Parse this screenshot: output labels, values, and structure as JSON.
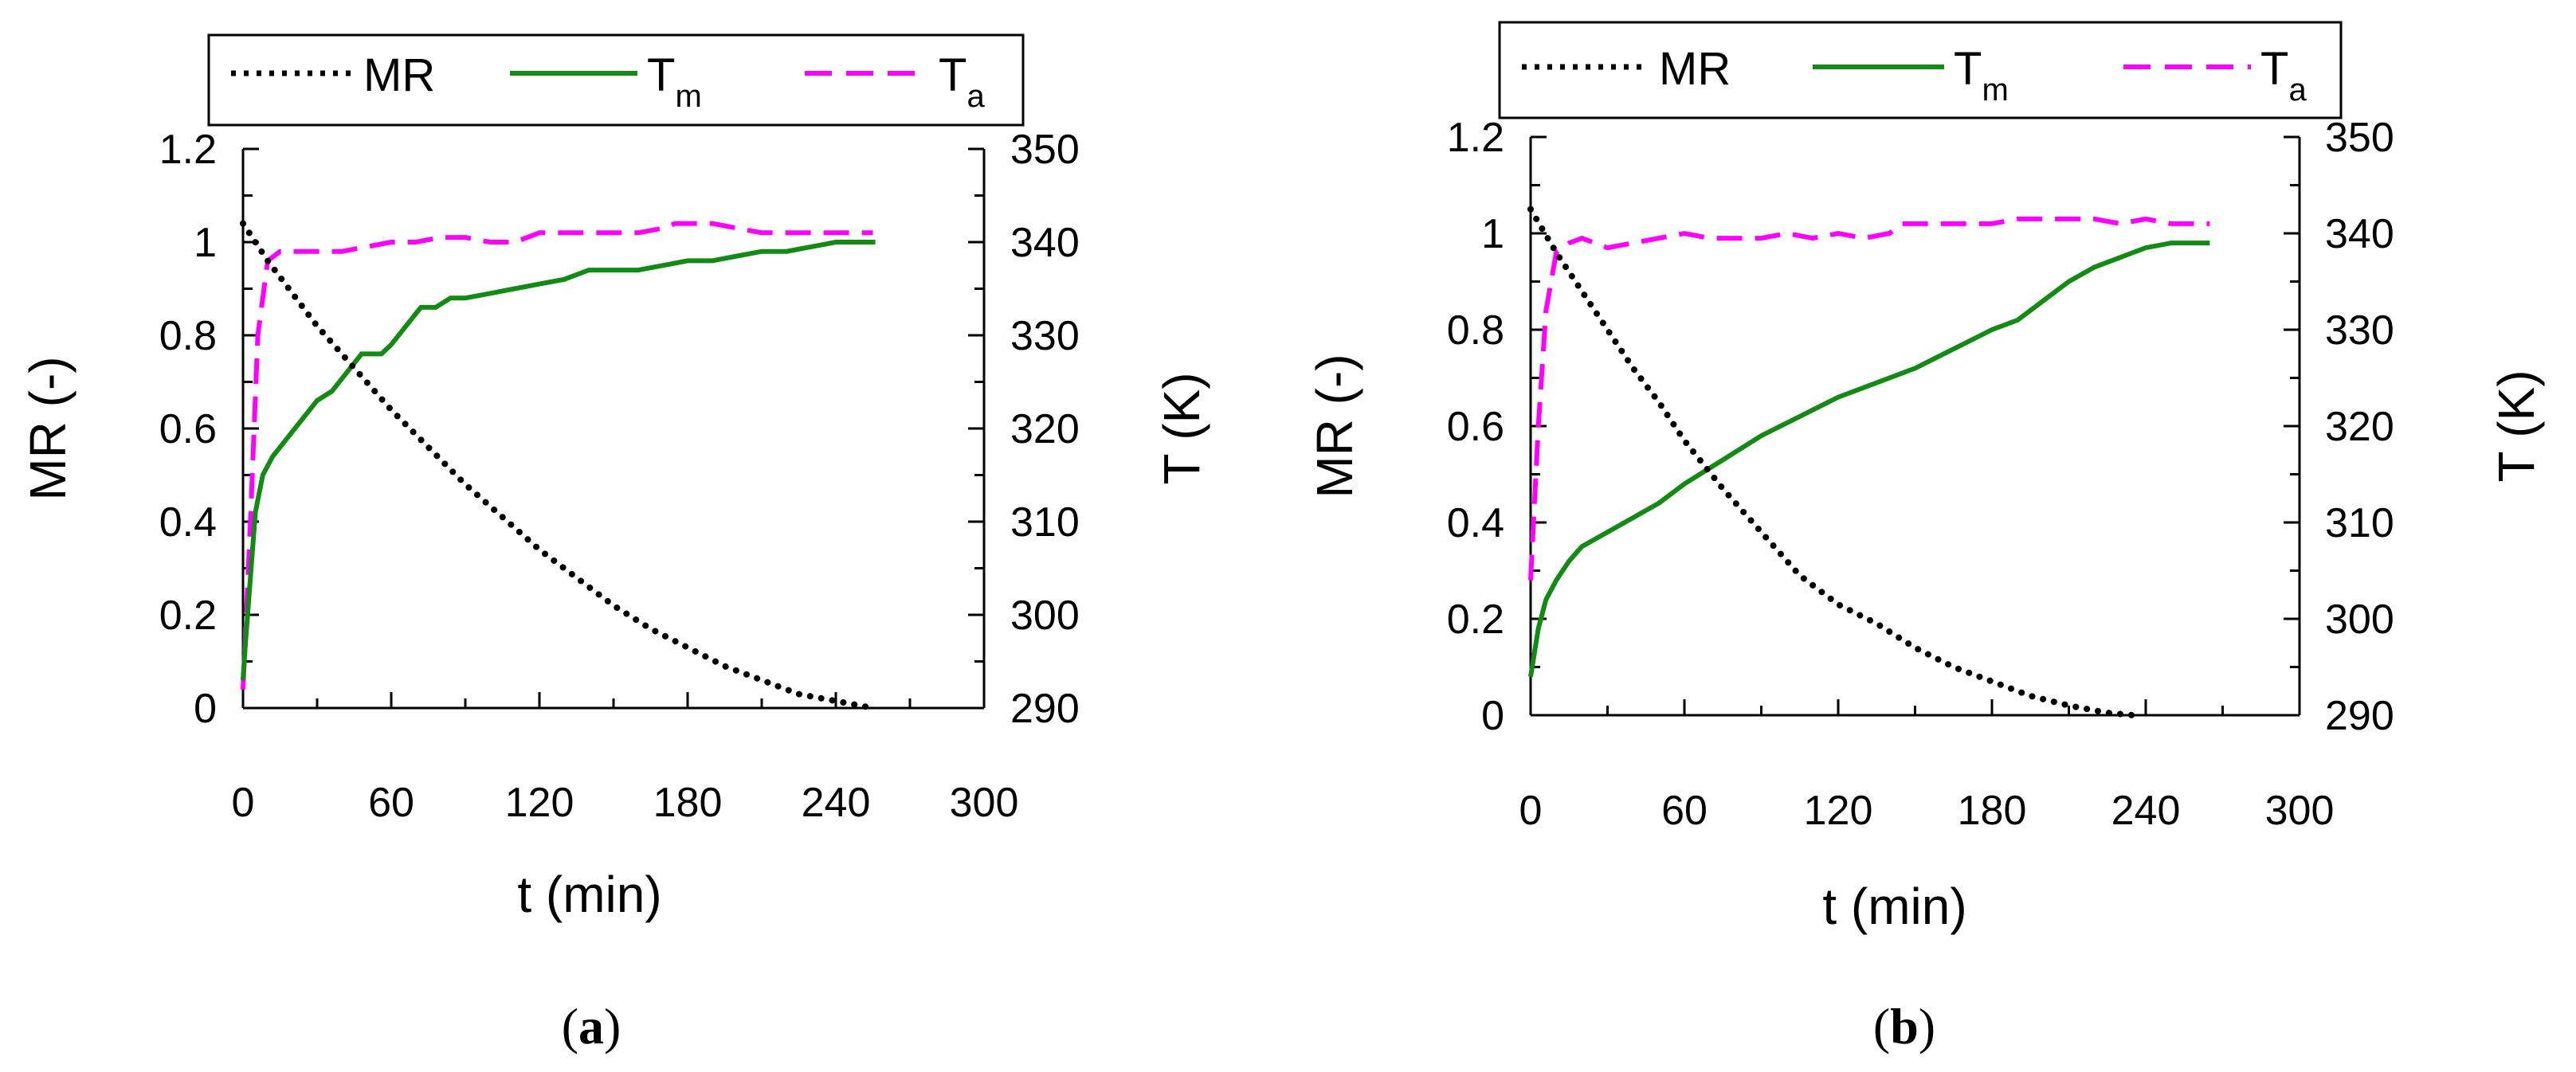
{
  "legend": {
    "mr_label": "MR",
    "tm_label": "T",
    "tm_sub": "m",
    "ta_label": "T",
    "ta_sub": "a"
  },
  "colors": {
    "mr": "#000000",
    "tm": "#138a13",
    "ta": "#ff00ff"
  },
  "panels": [
    {
      "open": "(",
      "letter": "a",
      "close": ")"
    },
    {
      "open": "(",
      "letter": "b",
      "close": ")"
    }
  ],
  "chart_data": [
    {
      "type": "line",
      "title": "",
      "panel_label": "(a)",
      "xlabel": "t (min)",
      "ylabel_left": "MR (-)",
      "ylabel_right": "T (K)",
      "xlim": [
        0,
        300
      ],
      "ylim_left": [
        0,
        1.2
      ],
      "ylim_right": [
        290,
        350
      ],
      "xticks": [
        "0",
        "60",
        "120",
        "180",
        "240",
        "300"
      ],
      "yticks_left": [
        "0",
        "0.2",
        "0.4",
        "0.6",
        "0.8",
        "1",
        "1.2"
      ],
      "yticks_right": [
        "290",
        "300",
        "310",
        "320",
        "330",
        "340",
        "350"
      ],
      "grid": false,
      "legend_position": "top",
      "series": [
        {
          "name": "MR",
          "axis": "left",
          "style": "dotted",
          "x": [
            0,
            10,
            20,
            30,
            40,
            50,
            60,
            75,
            90,
            105,
            120,
            135,
            150,
            165,
            180,
            195,
            210,
            225,
            240,
            255
          ],
          "y": [
            1.04,
            0.96,
            0.89,
            0.82,
            0.76,
            0.7,
            0.64,
            0.56,
            0.48,
            0.41,
            0.34,
            0.28,
            0.22,
            0.17,
            0.13,
            0.09,
            0.06,
            0.03,
            0.015,
            0.0
          ]
        },
        {
          "name": "Tm",
          "axis": "right",
          "style": "solid",
          "x": [
            0,
            1,
            3,
            5,
            8,
            12,
            18,
            24,
            30,
            36,
            42,
            48,
            52,
            56,
            60,
            66,
            72,
            78,
            84,
            90,
            100,
            110,
            120,
            130,
            140,
            150,
            160,
            170,
            180,
            190,
            200,
            210,
            220,
            230,
            240,
            250,
            256
          ],
          "y": [
            293,
            297,
            304,
            311,
            315,
            317,
            319,
            321,
            323,
            324,
            326,
            328,
            328,
            328,
            329,
            331,
            333,
            333,
            334,
            334,
            334.5,
            335,
            335.5,
            336,
            337,
            337,
            337,
            337.5,
            338,
            338,
            338.5,
            339,
            339,
            339.5,
            340,
            340,
            340
          ]
        },
        {
          "name": "Ta",
          "axis": "right",
          "style": "dashed",
          "x": [
            0,
            3,
            6,
            10,
            15,
            20,
            30,
            40,
            50,
            60,
            70,
            80,
            90,
            100,
            110,
            120,
            130,
            140,
            150,
            160,
            170,
            175,
            180,
            190,
            200,
            210,
            220,
            230,
            240,
            250,
            255
          ],
          "y": [
            292,
            310,
            330,
            338,
            339,
            339,
            339,
            339,
            339.5,
            340,
            340,
            340.5,
            340.5,
            340,
            340,
            341,
            341,
            341,
            341,
            341,
            341.5,
            342,
            342,
            342,
            341.5,
            341,
            341,
            341,
            341,
            341,
            341
          ]
        }
      ]
    },
    {
      "type": "line",
      "title": "",
      "panel_label": "(b)",
      "xlabel": "t (min)",
      "ylabel_left": "MR (-)",
      "ylabel_right": "T (K)",
      "xlim": [
        0,
        300
      ],
      "ylim_left": [
        0,
        1.2
      ],
      "ylim_right": [
        290,
        350
      ],
      "xticks": [
        "0",
        "60",
        "120",
        "180",
        "240",
        "300"
      ],
      "yticks_left": [
        "0",
        "0.2",
        "0.4",
        "0.6",
        "0.8",
        "1",
        "1.2"
      ],
      "yticks_right": [
        "290",
        "300",
        "310",
        "320",
        "330",
        "340",
        "350"
      ],
      "grid": false,
      "legend_position": "top",
      "series": [
        {
          "name": "MR",
          "axis": "left",
          "style": "dotted",
          "x": [
            0,
            10,
            20,
            30,
            40,
            50,
            60,
            75,
            90,
            105,
            120,
            135,
            150,
            165,
            180,
            195,
            210,
            225,
            235
          ],
          "y": [
            1.05,
            0.96,
            0.88,
            0.8,
            0.72,
            0.65,
            0.57,
            0.47,
            0.38,
            0.29,
            0.23,
            0.19,
            0.14,
            0.1,
            0.07,
            0.04,
            0.02,
            0.005,
            0.0
          ]
        },
        {
          "name": "Tm",
          "axis": "right",
          "style": "solid",
          "x": [
            0,
            3,
            6,
            10,
            15,
            20,
            30,
            40,
            50,
            60,
            75,
            90,
            105,
            120,
            135,
            150,
            165,
            180,
            190,
            200,
            210,
            220,
            230,
            240,
            250,
            260,
            265
          ],
          "y": [
            294,
            299,
            302,
            304,
            306,
            307.5,
            309,
            310.5,
            312,
            314,
            316.5,
            319,
            321,
            323,
            324.5,
            326,
            328,
            330,
            331,
            333,
            335,
            336.5,
            337.5,
            338.5,
            339,
            339,
            339
          ]
        },
        {
          "name": "Ta",
          "axis": "right",
          "style": "dashed",
          "x": [
            0,
            3,
            6,
            10,
            15,
            20,
            30,
            40,
            50,
            60,
            70,
            80,
            90,
            100,
            110,
            120,
            130,
            140,
            145,
            150,
            160,
            170,
            180,
            190,
            200,
            210,
            220,
            230,
            240,
            250,
            260,
            265
          ],
          "y": [
            304,
            320,
            332,
            338,
            339,
            339.5,
            338.5,
            339,
            339.5,
            340,
            339.5,
            339.5,
            339.5,
            340,
            339.5,
            340,
            339.5,
            340,
            341,
            341,
            341,
            341,
            341,
            341.5,
            341.5,
            341.5,
            341.5,
            341,
            341.5,
            341,
            341,
            341
          ]
        }
      ]
    }
  ]
}
